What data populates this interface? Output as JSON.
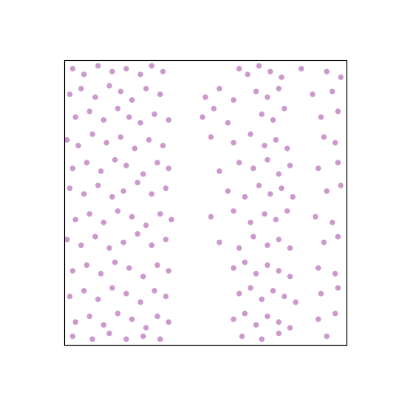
{
  "chart_data": {
    "type": "scatter",
    "color": "#800080",
    "marker": "o",
    "tick_labels": false,
    "xlim": [
      0,
      1
    ],
    "ylim": [
      0,
      1
    ],
    "xticks": [],
    "yticks": [],
    "x": [
      0.03,
      0.07,
      0.12,
      0.17,
      0.22,
      0.27,
      0.31,
      0.35,
      0.62,
      0.65,
      0.69,
      0.73,
      0.77,
      0.84,
      0.93,
      0.98,
      0.02,
      0.06,
      0.11,
      0.16,
      0.2,
      0.24,
      0.29,
      0.34,
      0.5,
      0.55,
      0.6,
      0.68,
      0.72,
      0.76,
      0.88,
      0.95,
      0.04,
      0.09,
      0.14,
      0.19,
      0.23,
      0.27,
      0.32,
      0.37,
      0.49,
      0.53,
      0.58,
      0.7,
      0.74,
      0.78,
      0.91,
      0.97,
      0.01,
      0.05,
      0.1,
      0.15,
      0.2,
      0.25,
      0.3,
      0.35,
      0.52,
      0.6,
      0.66,
      0.71,
      0.75,
      0.79,
      0.92,
      0.96,
      0.03,
      0.08,
      0.13,
      0.18,
      0.22,
      0.28,
      0.33,
      0.37,
      0.55,
      0.62,
      0.67,
      0.72,
      0.76,
      0.8,
      0.9,
      0.97,
      0.02,
      0.07,
      0.12,
      0.17,
      0.21,
      0.26,
      0.31,
      0.36,
      0.58,
      0.64,
      0.69,
      0.73,
      0.77,
      0.81,
      0.93,
      0.98,
      0.04,
      0.09,
      0.14,
      0.19,
      0.24,
      0.29,
      0.34,
      0.38,
      0.52,
      0.6,
      0.66,
      0.71,
      0.75,
      0.79,
      0.89,
      0.95,
      0.01,
      0.06,
      0.11,
      0.16,
      0.21,
      0.26,
      0.31,
      0.36,
      0.55,
      0.62,
      0.67,
      0.72,
      0.76,
      0.8,
      0.92,
      0.97,
      0.03,
      0.08,
      0.13,
      0.18,
      0.23,
      0.28,
      0.33,
      0.37,
      0.6,
      0.64,
      0.68,
      0.72,
      0.76,
      0.8,
      0.9,
      0.96,
      0.02,
      0.07,
      0.12,
      0.17,
      0.22,
      0.27,
      0.32,
      0.36,
      0.62,
      0.66,
      0.7,
      0.74,
      0.78,
      0.82,
      0.91,
      0.97,
      0.04,
      0.09,
      0.14,
      0.19,
      0.24,
      0.29,
      0.33,
      0.37,
      0.6,
      0.64,
      0.68,
      0.72,
      0.76,
      0.8,
      0.9,
      0.96,
      0.03,
      0.1,
      0.16,
      0.22,
      0.28,
      0.34,
      0.63,
      0.7,
      0.76,
      0.93
    ],
    "values": [
      0.97,
      0.95,
      0.98,
      0.96,
      0.97,
      0.95,
      0.98,
      0.96,
      0.97,
      0.95,
      0.98,
      0.96,
      0.94,
      0.97,
      0.96,
      0.94,
      0.88,
      0.9,
      0.87,
      0.91,
      0.89,
      0.86,
      0.9,
      0.88,
      0.87,
      0.9,
      0.86,
      0.89,
      0.87,
      0.9,
      0.88,
      0.89,
      0.8,
      0.82,
      0.79,
      0.83,
      0.8,
      0.78,
      0.81,
      0.79,
      0.8,
      0.83,
      0.78,
      0.81,
      0.79,
      0.83,
      0.8,
      0.82,
      0.72,
      0.7,
      0.74,
      0.71,
      0.73,
      0.69,
      0.72,
      0.7,
      0.73,
      0.71,
      0.74,
      0.7,
      0.72,
      0.69,
      0.73,
      0.71,
      0.62,
      0.64,
      0.61,
      0.65,
      0.63,
      0.6,
      0.64,
      0.62,
      0.61,
      0.64,
      0.62,
      0.65,
      0.6,
      0.63,
      0.62,
      0.64,
      0.55,
      0.53,
      0.56,
      0.52,
      0.54,
      0.57,
      0.53,
      0.55,
      0.54,
      0.52,
      0.56,
      0.53,
      0.55,
      0.52,
      0.54,
      0.56,
      0.44,
      0.46,
      0.43,
      0.47,
      0.45,
      0.42,
      0.46,
      0.44,
      0.45,
      0.47,
      0.43,
      0.46,
      0.44,
      0.47,
      0.45,
      0.43,
      0.37,
      0.35,
      0.38,
      0.34,
      0.36,
      0.39,
      0.35,
      0.37,
      0.36,
      0.34,
      0.38,
      0.35,
      0.37,
      0.34,
      0.36,
      0.38,
      0.26,
      0.28,
      0.25,
      0.29,
      0.27,
      0.24,
      0.28,
      0.26,
      0.27,
      0.29,
      0.25,
      0.28,
      0.26,
      0.24,
      0.27,
      0.25,
      0.17,
      0.19,
      0.16,
      0.2,
      0.18,
      0.15,
      0.19,
      0.17,
      0.18,
      0.2,
      0.16,
      0.19,
      0.17,
      0.15,
      0.18,
      0.2,
      0.08,
      0.1,
      0.07,
      0.11,
      0.09,
      0.06,
      0.1,
      0.08,
      0.09,
      0.11,
      0.07,
      0.1,
      0.08,
      0.06,
      0.09,
      0.11,
      0.03,
      0.02,
      0.04,
      0.02,
      0.03,
      0.02,
      0.03,
      0.02,
      0.04,
      0.03
    ]
  }
}
